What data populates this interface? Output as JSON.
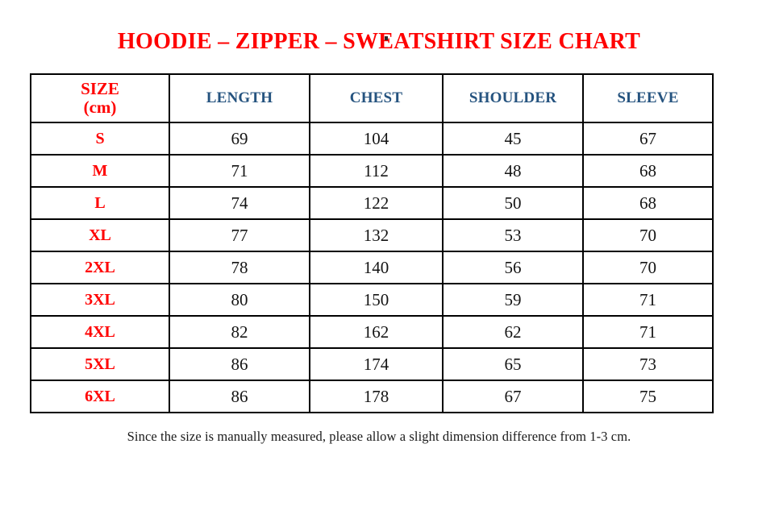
{
  "page": {
    "top_dot": ".",
    "title": "HOODIE – ZIPPER – SWEATSHIRT SIZE CHART",
    "footnote": "Since the size is manually measured, please allow a slight dimension difference from 1-3 cm."
  },
  "colors": {
    "title_red": "#ff0000",
    "size_label_red": "#ff0000",
    "header_blue": "#25537f",
    "value_text": "#141414",
    "table_border": "#000000"
  },
  "chart_data": {
    "type": "table",
    "title": "HOODIE – ZIPPER – SWEATSHIRT SIZE CHART",
    "unit": "cm",
    "columns": [
      "SIZE (cm)",
      "LENGTH",
      "CHEST",
      "SHOULDER",
      "SLEEVE"
    ],
    "header": {
      "size_line1": "SIZE",
      "size_line2": "(cm)"
    },
    "rows": [
      {
        "size": "S",
        "values": [
          69,
          104,
          45,
          67
        ]
      },
      {
        "size": "M",
        "values": [
          71,
          112,
          48,
          68
        ]
      },
      {
        "size": "L",
        "values": [
          74,
          122,
          50,
          68
        ]
      },
      {
        "size": "XL",
        "values": [
          77,
          132,
          53,
          70
        ]
      },
      {
        "size": "2XL",
        "values": [
          78,
          140,
          56,
          70
        ]
      },
      {
        "size": "3XL",
        "values": [
          80,
          150,
          59,
          71
        ]
      },
      {
        "size": "4XL",
        "values": [
          82,
          162,
          62,
          71
        ]
      },
      {
        "size": "5XL",
        "values": [
          86,
          174,
          65,
          73
        ]
      },
      {
        "size": "6XL",
        "values": [
          86,
          178,
          67,
          75
        ]
      }
    ],
    "footnote": "Since the size is manually measured, please allow a slight dimension difference from 1-3 cm."
  }
}
